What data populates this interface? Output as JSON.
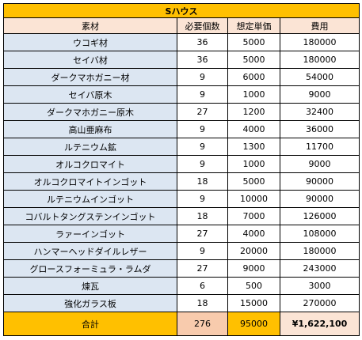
{
  "sheet": {
    "title": "Sハウス",
    "headers": [
      "素材",
      "必要個数",
      "想定単価",
      "費用"
    ],
    "rows": [
      [
        "ウコギ材",
        "36",
        "5000",
        "180000"
      ],
      [
        "セイバ材",
        "36",
        "5000",
        "180000"
      ],
      [
        "ダークマホガニー材",
        "9",
        "6000",
        "54000"
      ],
      [
        "セイバ原木",
        "9",
        "1000",
        "9000"
      ],
      [
        "ダークマホガニー原木",
        "27",
        "1200",
        "32400"
      ],
      [
        "高山亜麻布",
        "9",
        "4000",
        "36000"
      ],
      [
        "ルテニウム鉱",
        "9",
        "1300",
        "11700"
      ],
      [
        "オルコクロマイト",
        "9",
        "1000",
        "9000"
      ],
      [
        "オルコクロマイトインゴット",
        "18",
        "5000",
        "90000"
      ],
      [
        "ルテニウムインゴット",
        "9",
        "10000",
        "90000"
      ],
      [
        "コバルトタングステンインゴット",
        "18",
        "7000",
        "126000"
      ],
      [
        "ラァーインゴット",
        "27",
        "4000",
        "108000"
      ],
      [
        "ハンマーヘッドダイルレザー",
        "9",
        "20000",
        "180000"
      ],
      [
        "グロースフォーミュラ・ラムダ",
        "27",
        "9000",
        "243000"
      ],
      [
        "煉瓦",
        "6",
        "500",
        "3000"
      ],
      [
        "強化ガラス板",
        "18",
        "15000",
        "270000"
      ]
    ],
    "total": {
      "label": "合計",
      "count": "276",
      "price": "95000",
      "cost": "¥1,622,100"
    }
  },
  "colors": {
    "title_bg": "#ffc000",
    "header_bg": "#fbe4d5",
    "name_col_bg": "#dce6f2",
    "total_cost_text": "#ff0000"
  }
}
